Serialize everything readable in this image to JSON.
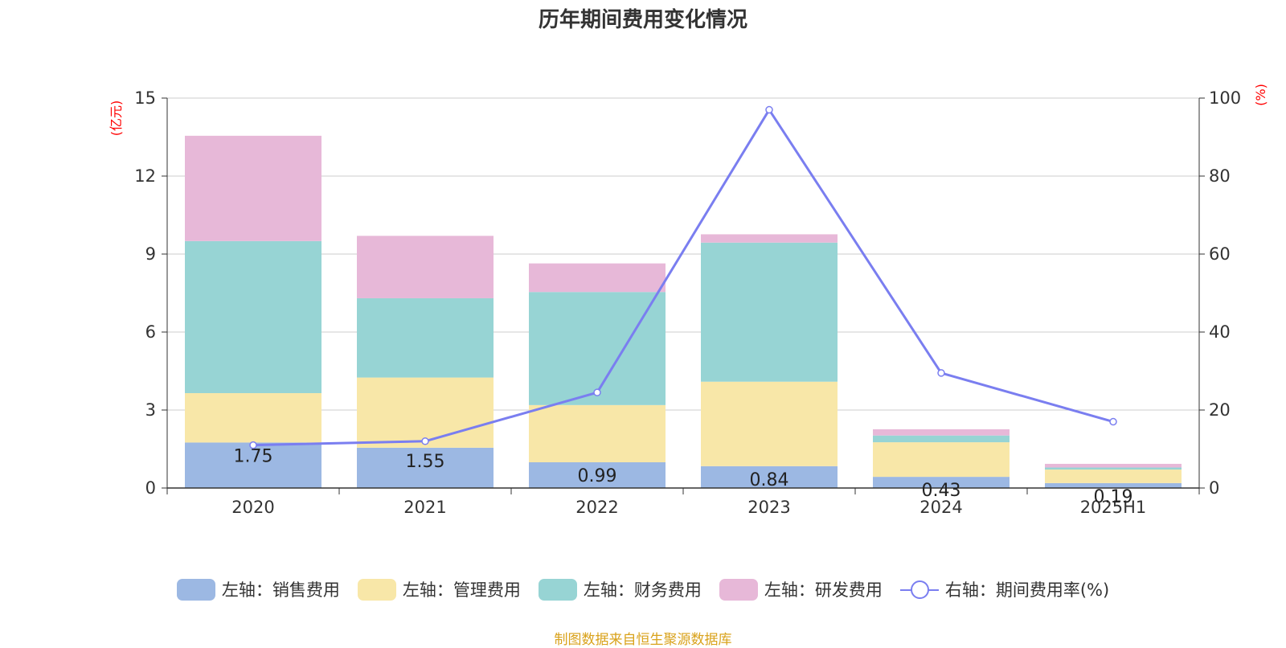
{
  "chart_data": {
    "type": "bar",
    "title": "历年期间费用变化情况",
    "categories": [
      "2020",
      "2021",
      "2022",
      "2023",
      "2024",
      "2025H1"
    ],
    "left_axis": {
      "label": "(亿元)",
      "range": [
        0,
        15
      ],
      "ticks": [
        "0",
        "3",
        "6",
        "9",
        "12",
        "15"
      ]
    },
    "right_axis": {
      "label": "(%)",
      "range": [
        0,
        100
      ],
      "ticks": [
        "0",
        "20",
        "40",
        "60",
        "80",
        "100"
      ]
    },
    "series": [
      {
        "name": "左轴：销售费用",
        "type": "bar",
        "stack": "total",
        "color": "#9cb8e3",
        "values": [
          1.75,
          1.55,
          0.99,
          0.84,
          0.43,
          0.19
        ],
        "labels": [
          "1.75",
          "1.55",
          "0.99",
          "0.84",
          "0.43",
          "0.19"
        ]
      },
      {
        "name": "左轴：管理费用",
        "type": "bar",
        "stack": "total",
        "color": "#f8e7a8",
        "values": [
          1.9,
          2.7,
          2.2,
          3.25,
          1.33,
          0.52
        ]
      },
      {
        "name": "左轴：财务费用",
        "type": "bar",
        "stack": "total",
        "color": "#97d4d4",
        "values": [
          5.85,
          3.05,
          4.35,
          5.35,
          0.26,
          0.08
        ]
      },
      {
        "name": "左轴：研发费用",
        "type": "bar",
        "stack": "total",
        "color": "#e7b8d8",
        "values": [
          4.05,
          2.4,
          1.1,
          0.32,
          0.24,
          0.14
        ]
      },
      {
        "name": "右轴：期间费用率(%)",
        "type": "line",
        "axis": "right",
        "color": "#7a7ef0",
        "values": [
          11,
          12,
          24.5,
          97,
          29.5,
          17
        ]
      }
    ],
    "grid": true,
    "legend_position": "bottom",
    "source_note": "制图数据来自恒生聚源数据库"
  }
}
